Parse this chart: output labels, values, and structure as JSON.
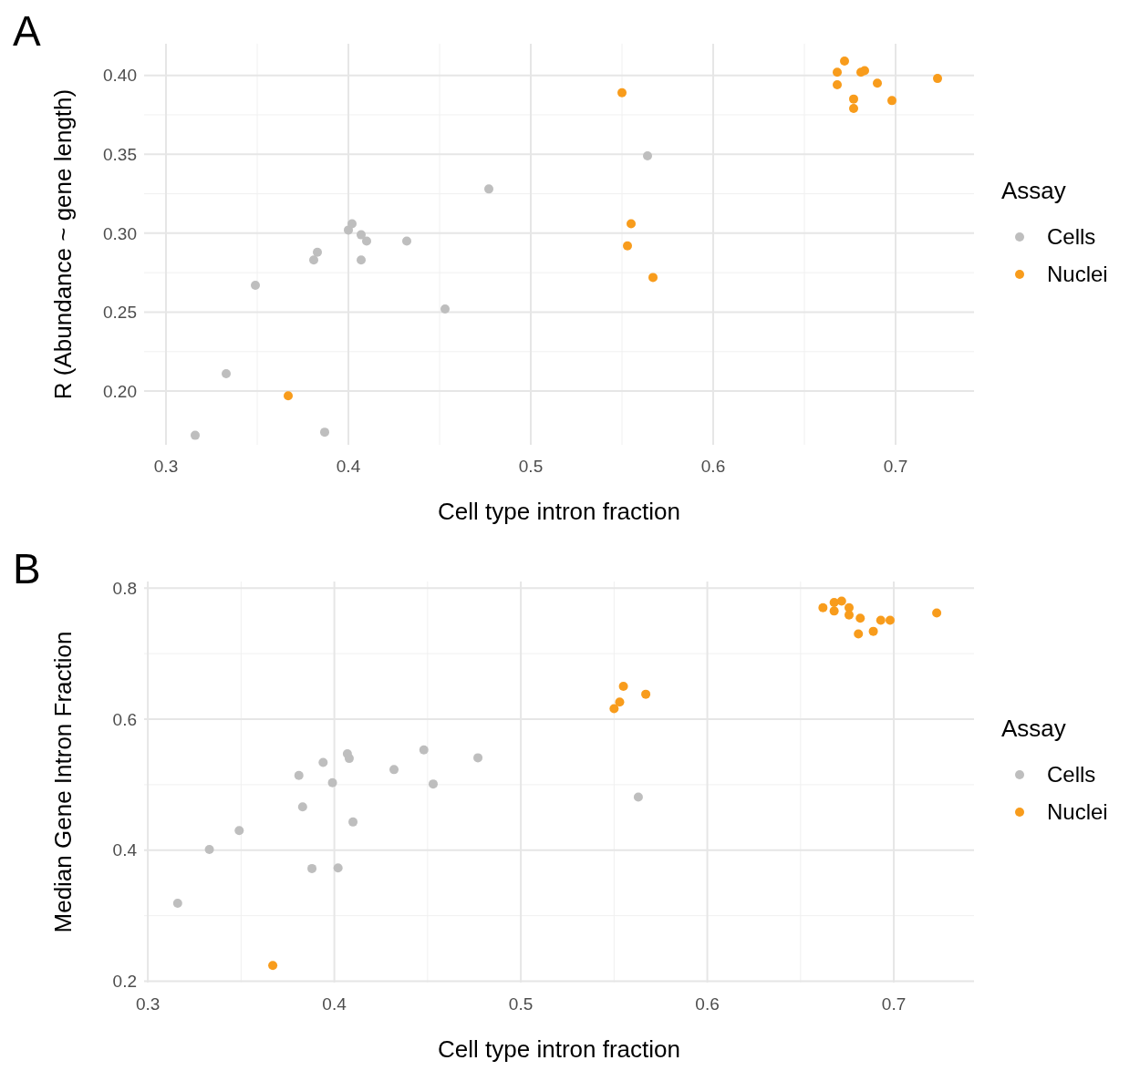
{
  "chart_data": [
    {
      "type": "scatter",
      "title": "A",
      "xlabel": "Cell type intron fraction",
      "ylabel": "R (Abundance ~ gene length)",
      "legend_title": "Assay",
      "legend": "right",
      "grid": true,
      "marker": "circle",
      "xlim": [
        0.288,
        0.743
      ],
      "ylim": [
        0.166,
        0.42
      ],
      "xticks": [
        0.3,
        0.4,
        0.5,
        0.6,
        0.7
      ],
      "yticks": [
        {
          "value": 0.2,
          "label": "0.20"
        },
        0.25,
        {
          "value": 0.3,
          "label": "0.30"
        },
        0.35,
        {
          "value": 0.4,
          "label": "0.40"
        }
      ],
      "series": [
        {
          "name": "Cells",
          "color": "#bebebe",
          "x": [
            0.316,
            0.333,
            0.349,
            0.381,
            0.383,
            0.387,
            0.4,
            0.402,
            0.407,
            0.41,
            0.407,
            0.432,
            0.453,
            0.477,
            0.564
          ],
          "values": [
            0.172,
            0.211,
            0.267,
            0.283,
            0.288,
            0.174,
            0.302,
            0.306,
            0.299,
            0.295,
            0.283,
            0.295,
            0.252,
            0.328,
            0.349
          ]
        },
        {
          "name": "Nuclei",
          "color": "#f89c1c",
          "x": [
            0.367,
            0.55,
            0.555,
            0.553,
            0.567,
            0.672,
            0.668,
            0.668,
            0.677,
            0.677,
            0.681,
            0.683,
            0.69,
            0.698,
            0.723
          ],
          "values": [
            0.197,
            0.389,
            0.306,
            0.292,
            0.272,
            0.409,
            0.402,
            0.394,
            0.385,
            0.379,
            0.402,
            0.403,
            0.395,
            0.384,
            0.398
          ]
        }
      ]
    },
    {
      "type": "scatter",
      "title": "B",
      "xlabel": "Cell type intron fraction",
      "ylabel": "Median Gene Intron Fraction",
      "legend_title": "Assay",
      "legend": "right",
      "grid": true,
      "marker": "circle",
      "xlim": [
        0.298,
        0.743
      ],
      "ylim": [
        0.198,
        0.81
      ],
      "xticks": [
        0.3,
        0.4,
        0.5,
        0.6,
        0.7
      ],
      "yticks": [
        0.2,
        0.4,
        0.6,
        0.8
      ],
      "series": [
        {
          "name": "Cells",
          "color": "#bebebe",
          "x": [
            0.316,
            0.333,
            0.349,
            0.381,
            0.383,
            0.388,
            0.394,
            0.399,
            0.402,
            0.407,
            0.408,
            0.41,
            0.432,
            0.448,
            0.453,
            0.477,
            0.563
          ],
          "values": [
            0.319,
            0.401,
            0.43,
            0.514,
            0.466,
            0.372,
            0.534,
            0.503,
            0.373,
            0.547,
            0.54,
            0.443,
            0.523,
            0.553,
            0.501,
            0.541,
            0.481
          ]
        },
        {
          "name": "Nuclei",
          "color": "#f89c1c",
          "x": [
            0.367,
            0.55,
            0.553,
            0.555,
            0.567,
            0.662,
            0.668,
            0.672,
            0.668,
            0.676,
            0.676,
            0.682,
            0.681,
            0.689,
            0.693,
            0.698,
            0.723
          ],
          "values": [
            0.224,
            0.616,
            0.626,
            0.65,
            0.638,
            0.77,
            0.778,
            0.78,
            0.765,
            0.77,
            0.759,
            0.754,
            0.73,
            0.734,
            0.751,
            0.751,
            0.762
          ]
        }
      ]
    }
  ]
}
